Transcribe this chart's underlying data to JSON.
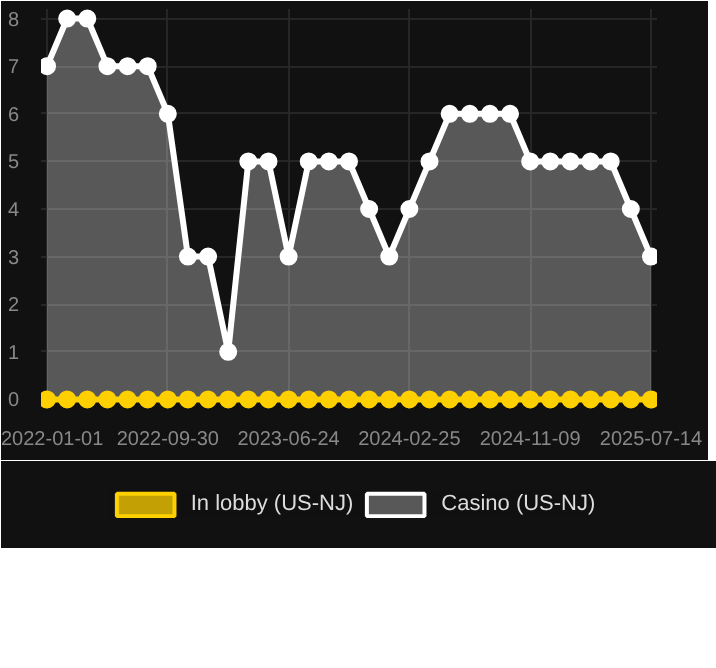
{
  "chart_data": {
    "type": "line",
    "categories": [
      "2022-01-01",
      null,
      null,
      null,
      null,
      null,
      "2022-09-30",
      null,
      null,
      null,
      null,
      null,
      "2023-06-24",
      null,
      null,
      null,
      null,
      null,
      "2024-02-25",
      null,
      null,
      null,
      null,
      null,
      "2024-11-09",
      null,
      null,
      null,
      null,
      null,
      "2025-07-14"
    ],
    "series": [
      {
        "name": "In lobby (US-NJ)",
        "color": "#ffd000",
        "values": [
          0,
          0,
          0,
          0,
          0,
          0,
          0,
          0,
          0,
          0,
          0,
          0,
          0,
          0,
          0,
          0,
          0,
          0,
          0,
          0,
          0,
          0,
          0,
          0,
          0,
          0,
          0,
          0,
          0,
          0,
          0
        ]
      },
      {
        "name": "Casino (US-NJ)",
        "type": "area",
        "color": "#ffffff",
        "values": [
          7,
          8,
          8,
          7,
          7,
          7,
          6,
          3,
          3,
          1,
          5,
          5,
          3,
          5,
          5,
          5,
          4,
          3,
          4,
          5,
          6,
          6,
          6,
          6,
          5,
          5,
          5,
          5,
          5,
          4,
          3
        ]
      }
    ],
    "ylim": [
      -0.2,
      8.2
    ],
    "yticks": [
      0,
      1,
      2,
      3,
      4,
      5,
      6,
      7,
      8
    ],
    "grid": true,
    "legend": "bottom",
    "marker": "circle"
  }
}
